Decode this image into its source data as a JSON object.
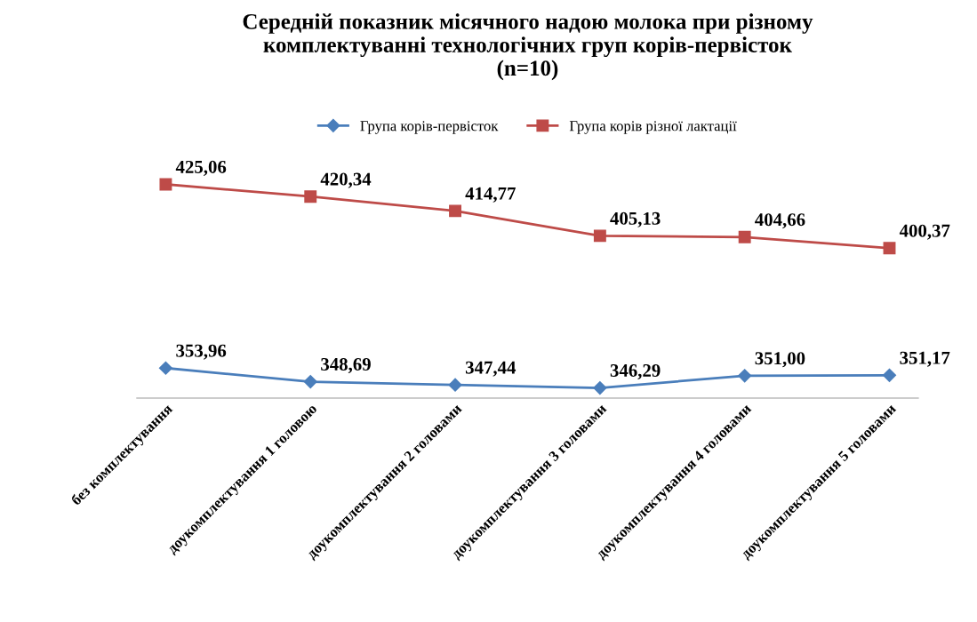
{
  "chart_data": {
    "type": "line",
    "title": "Середній показник місячного надою молока при різному\nкомплектуванні технологічних груп корів-первісток\n(n=10)",
    "categories": [
      "без комплектування",
      "доукомплектування 1 головою",
      "доукомплектування 2 головами",
      "доукомплектування 3 головами",
      "доукомплектування 4 головами",
      "доукомплектування 5 головами"
    ],
    "series": [
      {
        "name": "Група корів-первісток",
        "color": "#4a7ebb",
        "marker": "diamond",
        "values": [
          353.96,
          348.69,
          347.44,
          346.29,
          351.0,
          351.17
        ],
        "value_labels": [
          "353,96",
          "348,69",
          "347,44",
          "346,29",
          "351,00",
          "351,17"
        ]
      },
      {
        "name": "Група корів різної лактації",
        "color": "#be4b48",
        "marker": "square",
        "values": [
          425.06,
          420.34,
          414.77,
          405.13,
          404.66,
          400.37
        ],
        "value_labels": [
          "425,06",
          "420,34",
          "414,77",
          "405,13",
          "404,66",
          "400,37"
        ]
      }
    ],
    "legend": "top",
    "grid": false,
    "tick_labels": "x"
  }
}
